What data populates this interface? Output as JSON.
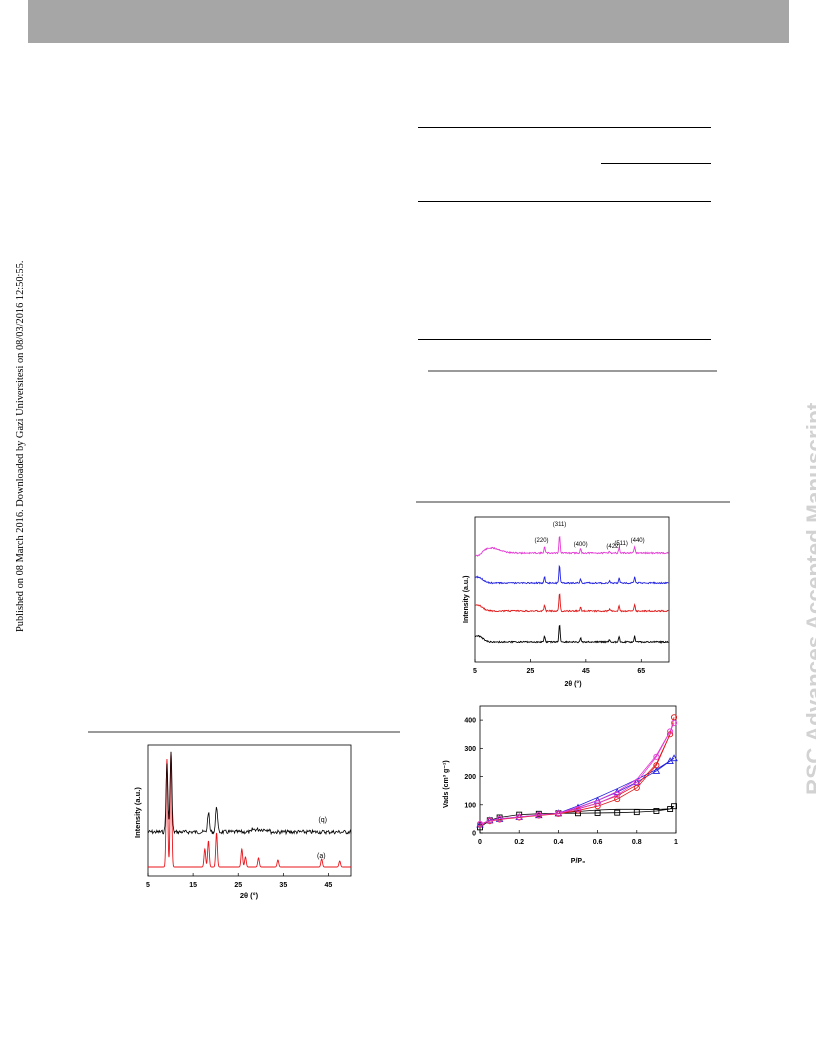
{
  "header": {
    "bar_color": "#a6a6a6"
  },
  "side_note": "Published on 08 March 2016. Downloaded by Gazi Universitesi on 08/03/2016 12:50:55.",
  "watermark": "RSC Advances Accepted Manuscript",
  "chart_data": [
    {
      "type": "line",
      "xlabel": "2θ (°)",
      "ylabel": "Intensity (a.u.)",
      "xlim": [
        5,
        50
      ],
      "x_ticks": [
        "5",
        "15",
        "25",
        "35",
        "45"
      ],
      "series": [
        {
          "name": "(a)",
          "color": "#e8141a",
          "peaks_2theta": [
            9.2,
            10.1,
            17.6,
            18.4,
            20.2,
            25.8,
            26.6,
            29.5,
            33.8,
            43.5,
            47.5
          ]
        },
        {
          "name": "(b)",
          "color": "#000000",
          "peaks_2theta": [
            9.2,
            10.1,
            18.4,
            20.2
          ]
        }
      ],
      "grid": false
    },
    {
      "type": "line",
      "xlabel": "2θ (°)",
      "ylabel": "Intensity (a.u.)",
      "xlim": [
        5,
        75
      ],
      "x_ticks": [
        "5",
        "25",
        "45",
        "65"
      ],
      "peak_labels": [
        "(220)",
        "(311)",
        "(400)",
        "(422)",
        "(511)",
        "(440)"
      ],
      "peak_positions_2theta": [
        30.1,
        35.5,
        43.1,
        53.5,
        57.0,
        62.6
      ],
      "series": [
        {
          "color": "#e43ad4"
        },
        {
          "color": "#2020e0"
        },
        {
          "color": "#e01818"
        },
        {
          "color": "#000000"
        }
      ],
      "grid": false
    },
    {
      "type": "scatter",
      "xlabel": "P/P₀",
      "ylabel": "Vads (cm³ g⁻¹)",
      "xlim": [
        0,
        1
      ],
      "ylim": [
        0,
        450
      ],
      "x_ticks": [
        "0",
        "0.2",
        "0.4",
        "0.6",
        "0.8",
        "1"
      ],
      "y_ticks": [
        "0",
        "100",
        "200",
        "300",
        "400"
      ],
      "series": [
        {
          "color": "#000000",
          "marker": "square",
          "x": [
            0,
            0.05,
            0.1,
            0.2,
            0.3,
            0.4,
            0.5,
            0.6,
            0.7,
            0.8,
            0.9,
            0.97,
            0.99
          ],
          "y": [
            20,
            45,
            55,
            65,
            68,
            70,
            70,
            71,
            72,
            74,
            78,
            85,
            95
          ]
        },
        {
          "color": "#2020e0",
          "marker": "triangle",
          "x": [
            0,
            0.05,
            0.1,
            0.2,
            0.3,
            0.4,
            0.5,
            0.6,
            0.7,
            0.8,
            0.9,
            0.97,
            0.99
          ],
          "y": [
            30,
            45,
            50,
            57,
            63,
            70,
            90,
            115,
            145,
            180,
            220,
            255,
            265
          ]
        },
        {
          "color": "#e01818",
          "marker": "circle",
          "x": [
            0,
            0.05,
            0.1,
            0.2,
            0.3,
            0.4,
            0.5,
            0.6,
            0.7,
            0.8,
            0.9,
            0.97,
            0.99
          ],
          "y": [
            30,
            42,
            48,
            55,
            62,
            68,
            80,
            95,
            120,
            160,
            240,
            350,
            410
          ]
        },
        {
          "color": "#e43ad4",
          "marker": "circle",
          "x": [
            0,
            0.05,
            0.1,
            0.2,
            0.3,
            0.4,
            0.5,
            0.6,
            0.7,
            0.8,
            0.9,
            0.97,
            0.99
          ],
          "y": [
            32,
            44,
            50,
            57,
            64,
            70,
            85,
            105,
            135,
            180,
            270,
            360,
            390
          ]
        }
      ],
      "grid": false
    }
  ]
}
